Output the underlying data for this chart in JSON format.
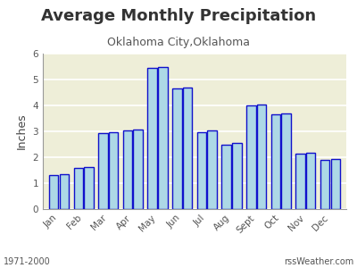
{
  "title": "Average Monthly Precipitation",
  "subtitle": "Oklahoma City,Oklahoma",
  "ylabel": "Inches",
  "categories": [
    "Jan",
    "Feb",
    "Mar",
    "Apr",
    "May",
    "Jun",
    "Jul",
    "Aug",
    "Sept",
    "Oct",
    "Nov",
    "Dec"
  ],
  "values": [
    1.3,
    1.6,
    2.93,
    3.02,
    5.45,
    4.65,
    2.95,
    2.5,
    4.0,
    3.65,
    2.15,
    1.9
  ],
  "values2": [
    1.35,
    1.62,
    2.97,
    3.06,
    5.48,
    4.68,
    3.02,
    2.55,
    4.03,
    3.68,
    2.18,
    1.93
  ],
  "bar_color": "#ADD8E6",
  "bar_edge_color": "#1010CC",
  "bar_edge_width": 1.0,
  "ylim": [
    0.0,
    6.0
  ],
  "yticks": [
    0.0,
    1.0,
    2.0,
    3.0,
    4.0,
    5.0,
    6.0
  ],
  "background_color": "#FFFFFF",
  "plot_bg_color": "#EEEED8",
  "grid_color": "#FFFFFF",
  "title_fontsize": 13,
  "subtitle_fontsize": 9,
  "ylabel_fontsize": 9,
  "tick_fontsize": 7.5,
  "footer_left": "1971-2000",
  "footer_right": "rssWeather.com",
  "footer_fontsize": 7
}
